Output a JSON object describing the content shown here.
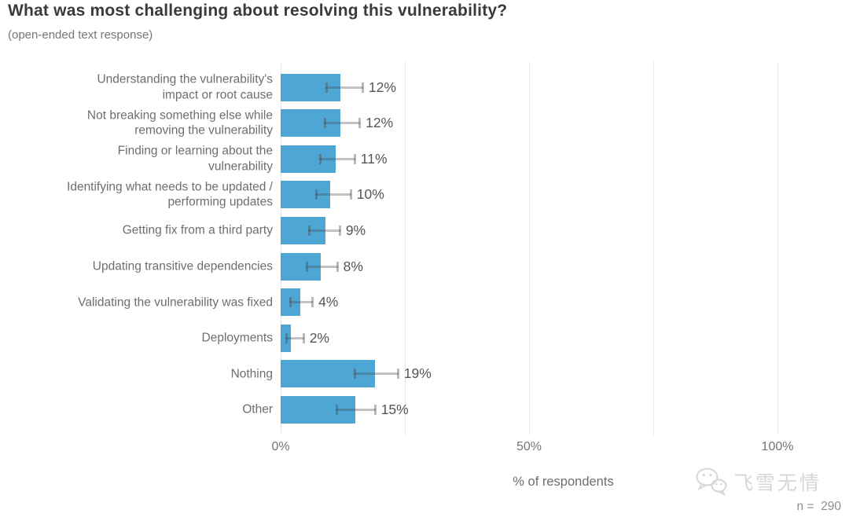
{
  "chart_data": {
    "type": "bar",
    "orientation": "horizontal",
    "title": "What was most challenging about resolving this vulnerability?",
    "subtitle": "(open-ended text response)",
    "xlabel": "% of respondents",
    "sample_note": "n =  290",
    "watermark_text": "飞雪无情",
    "bar_color": "#4da6d4",
    "grid": true,
    "xlim": [
      0,
      100
    ],
    "gridline_values": [
      0,
      25,
      50,
      75,
      100
    ],
    "x_ticks": [
      {
        "value": 0,
        "label": "0%"
      },
      {
        "value": 50,
        "label": "50%"
      },
      {
        "value": 100,
        "label": "100%"
      }
    ],
    "items": [
      {
        "category": "Understanding the vulnerability's\nimpact or root cause",
        "value": 12,
        "label": "12%",
        "ci_low": 9.0,
        "ci_high": 16.6
      },
      {
        "category": "Not breaking something else while\nremoving the vulnerability",
        "value": 12,
        "label": "12%",
        "ci_low": 8.7,
        "ci_high": 16.0
      },
      {
        "category": "Finding or learning about the\nvulnerability",
        "value": 11,
        "label": "11%",
        "ci_low": 7.8,
        "ci_high": 15.0
      },
      {
        "category": "Identifying what needs to be updated /\nperforming updates",
        "value": 10,
        "label": "10%",
        "ci_low": 7.0,
        "ci_high": 14.2
      },
      {
        "category": "Getting fix from a third party",
        "value": 9,
        "label": "9%",
        "ci_low": 5.5,
        "ci_high": 12.0
      },
      {
        "category": "Updating transitive dependencies",
        "value": 8,
        "label": "8%",
        "ci_low": 5.0,
        "ci_high": 11.5
      },
      {
        "category": "Validating the vulnerability was fixed",
        "value": 4,
        "label": "4%",
        "ci_low": 1.7,
        "ci_high": 6.5
      },
      {
        "category": "Deployments",
        "value": 2,
        "label": "2%",
        "ci_low": 1.0,
        "ci_high": 4.7
      },
      {
        "category": "Nothing",
        "value": 19,
        "label": "19%",
        "ci_low": 14.7,
        "ci_high": 23.7
      },
      {
        "category": "Other",
        "value": 15,
        "label": "15%",
        "ci_low": 11.1,
        "ci_high": 19.1
      }
    ]
  }
}
